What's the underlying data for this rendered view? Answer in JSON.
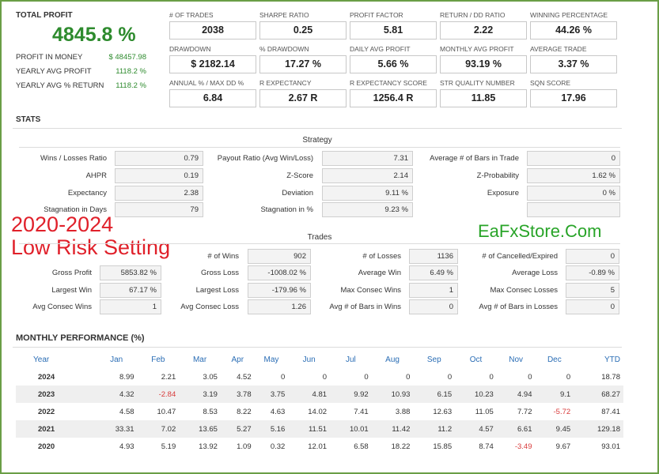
{
  "summary": {
    "total_profit_label": "TOTAL PROFIT",
    "total_profit_value": "4845.8 %",
    "rows": [
      {
        "label": "PROFIT IN MONEY",
        "value": "$ 48457.98"
      },
      {
        "label": "YEARLY AVG PROFIT",
        "value": "1118.2 %"
      },
      {
        "label": "YEARLY AVG % RETURN",
        "value": "1118.2 %"
      }
    ]
  },
  "metrics": [
    {
      "label": "# OF TRADES",
      "value": "2038"
    },
    {
      "label": "SHARPE RATIO",
      "value": "0.25"
    },
    {
      "label": "PROFIT FACTOR",
      "value": "5.81"
    },
    {
      "label": "RETURN / DD RATIO",
      "value": "2.22"
    },
    {
      "label": "WINNING PERCENTAGE",
      "value": "44.26 %"
    },
    {
      "label": "DRAWDOWN",
      "value": "$ 2182.14"
    },
    {
      "label": "% DRAWDOWN",
      "value": "17.27 %"
    },
    {
      "label": "DAILY AVG PROFIT",
      "value": "5.66 %"
    },
    {
      "label": "MONTHLY AVG PROFIT",
      "value": "93.19 %"
    },
    {
      "label": "AVERAGE TRADE",
      "value": "3.37 %"
    },
    {
      "label": "ANNUAL % / MAX DD %",
      "value": "6.84"
    },
    {
      "label": "R EXPECTANCY",
      "value": "2.67 R"
    },
    {
      "label": "R EXPECTANCY SCORE",
      "value": "1256.4 R"
    },
    {
      "label": "STR QUALITY NUMBER",
      "value": "11.85"
    },
    {
      "label": "SQN SCORE",
      "value": "17.96"
    }
  ],
  "stats_title": "STATS",
  "strategy": {
    "heading": "Strategy",
    "col1": [
      {
        "label": "Wins / Losses Ratio",
        "value": "0.79"
      },
      {
        "label": "AHPR",
        "value": "0.19"
      },
      {
        "label": "Expectancy",
        "value": "2.38"
      },
      {
        "label": "Stagnation in Days",
        "value": "79"
      }
    ],
    "col2": [
      {
        "label": "Payout Ratio (Avg Win/Loss)",
        "value": "7.31"
      },
      {
        "label": "Z-Score",
        "value": "2.14"
      },
      {
        "label": "Deviation",
        "value": "9.11 %"
      },
      {
        "label": "Stagnation in %",
        "value": "9.23 %"
      }
    ],
    "col3": [
      {
        "label": "Average # of Bars in Trade",
        "value": "0"
      },
      {
        "label": "Z-Probability",
        "value": "1.62 %"
      },
      {
        "label": "Exposure",
        "value": "0 %"
      },
      {
        "label": "",
        "value": ""
      }
    ]
  },
  "trades": {
    "heading": "Trades",
    "col1": [
      {
        "label": "",
        "value": ""
      },
      {
        "label": "Gross Profit",
        "value": "5853.82 %"
      },
      {
        "label": "Largest Win",
        "value": "67.17 %"
      },
      {
        "label": "Avg Consec Wins",
        "value": "1"
      }
    ],
    "col2": [
      {
        "label": "# of Wins",
        "value": "902"
      },
      {
        "label": "Gross Loss",
        "value": "-1008.02 %"
      },
      {
        "label": "Largest Loss",
        "value": "-179.96 %"
      },
      {
        "label": "Avg Consec Loss",
        "value": "1.26"
      }
    ],
    "col3": [
      {
        "label": "# of Losses",
        "value": "1136"
      },
      {
        "label": "Average Win",
        "value": "6.49 %"
      },
      {
        "label": "Max Consec Wins",
        "value": "1"
      },
      {
        "label": "Avg # of Bars in Wins",
        "value": "0"
      }
    ],
    "col4": [
      {
        "label": "# of Cancelled/Expired",
        "value": "0"
      },
      {
        "label": "Average Loss",
        "value": "-0.89 %"
      },
      {
        "label": "Max Consec Losses",
        "value": "5"
      },
      {
        "label": "Avg # of Bars in Losses",
        "value": "0"
      }
    ]
  },
  "overlay": {
    "line1": "2020-2024",
    "line2": "Low Risk Setting",
    "brand": "EaFxStore.Com",
    "line_color": "#e0202a",
    "brand_color": "#28a428"
  },
  "monthly": {
    "title": "MONTHLY PERFORMANCE (%)",
    "headers": [
      "Year",
      "Jan",
      "Feb",
      "Mar",
      "Apr",
      "May",
      "Jun",
      "Jul",
      "Aug",
      "Sep",
      "Oct",
      "Nov",
      "Dec",
      "YTD"
    ],
    "rows": [
      [
        "2024",
        "8.99",
        "2.21",
        "3.05",
        "4.52",
        "0",
        "0",
        "0",
        "0",
        "0",
        "0",
        "0",
        "0",
        "18.78"
      ],
      [
        "2023",
        "4.32",
        "-2.84",
        "3.19",
        "3.78",
        "3.75",
        "4.81",
        "9.92",
        "10.93",
        "6.15",
        "10.23",
        "4.94",
        "9.1",
        "68.27"
      ],
      [
        "2022",
        "4.58",
        "10.47",
        "8.53",
        "8.22",
        "4.63",
        "14.02",
        "7.41",
        "3.88",
        "12.63",
        "11.05",
        "7.72",
        "-5.72",
        "87.41"
      ],
      [
        "2021",
        "33.31",
        "7.02",
        "13.65",
        "5.27",
        "5.16",
        "11.51",
        "10.01",
        "11.42",
        "11.2",
        "4.57",
        "6.61",
        "9.45",
        "129.18"
      ],
      [
        "2020",
        "4.93",
        "5.19",
        "13.92",
        "1.09",
        "0.32",
        "12.01",
        "6.58",
        "18.22",
        "15.85",
        "8.74",
        "-3.49",
        "9.67",
        "93.01"
      ]
    ],
    "negative_color": "#d83b3b",
    "header_color": "#2a6db5"
  }
}
